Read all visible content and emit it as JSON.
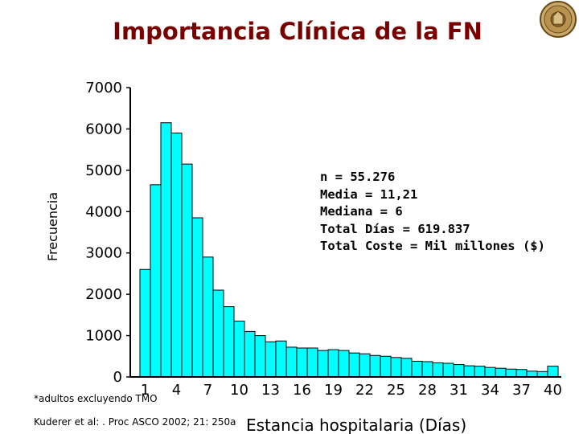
{
  "title": "Importancia Clínica de la FN",
  "colors": {
    "bar": "#00ffff",
    "bar_stroke": "#000000",
    "title": "#7a0000"
  },
  "stats": [
    "n = 55.276",
    "Media = 11,21",
    "Mediana = 6",
    "Total Días = 619.837",
    "Total Coste = Mil millones ($)"
  ],
  "footnote": "*adultos excluyendo TMO",
  "citation": "Kuderer et al: . Proc ASCO 2002; 21: 250a",
  "logo": "university-seal",
  "chart_data": {
    "type": "bar",
    "title": "Importancia Clínica de la FN",
    "xlabel": "Estancia hospitalaria (Días)",
    "ylabel": "Frecuencia",
    "ylim": [
      0,
      7000
    ],
    "yticks": [
      "0",
      "1000",
      "2000",
      "3000",
      "4000",
      "5000",
      "6000",
      "7000"
    ],
    "xticks": [
      "1",
      "4",
      "7",
      "10",
      "13",
      "16",
      "19",
      "22",
      "25",
      "28",
      "31",
      "34",
      "37",
      "40"
    ],
    "categories": [
      1,
      2,
      3,
      4,
      5,
      6,
      7,
      8,
      9,
      10,
      11,
      12,
      13,
      14,
      15,
      16,
      17,
      18,
      19,
      20,
      21,
      22,
      23,
      24,
      25,
      26,
      27,
      28,
      29,
      30,
      31,
      32,
      33,
      34,
      35,
      36,
      37,
      38,
      39,
      40
    ],
    "values": [
      2600,
      4650,
      6150,
      5900,
      5150,
      3850,
      2900,
      2100,
      1700,
      1350,
      1100,
      1000,
      850,
      870,
      720,
      700,
      700,
      640,
      660,
      640,
      580,
      560,
      520,
      500,
      470,
      450,
      380,
      370,
      340,
      330,
      300,
      270,
      260,
      230,
      210,
      190,
      180,
      140,
      130,
      260
    ],
    "grid": false,
    "legend": "none"
  }
}
